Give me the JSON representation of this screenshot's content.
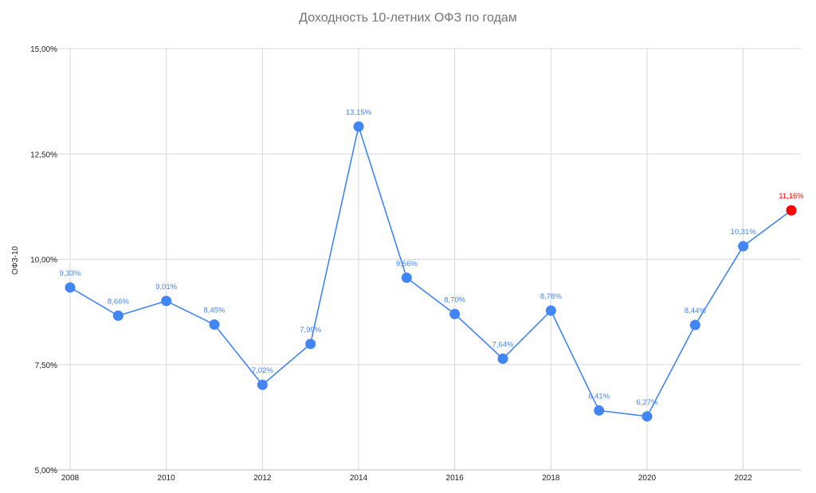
{
  "chart_data": {
    "type": "line",
    "title": "Доходность 10-летних ОФЗ по годам",
    "xlabel": "",
    "ylabel": "ОФЗ-10",
    "x": [
      2008,
      2009,
      2010,
      2011,
      2012,
      2013,
      2014,
      2015,
      2016,
      2017,
      2018,
      2019,
      2020,
      2021,
      2022,
      2023
    ],
    "series": [
      {
        "values": [
          9.33,
          8.66,
          9.01,
          8.45,
          7.02,
          7.99,
          13.15,
          9.56,
          8.7,
          7.64,
          8.78,
          6.41,
          6.27,
          8.44,
          10.31,
          11.16
        ],
        "labels": [
          "9,33%",
          "8,66%",
          "9,01%",
          "8,45%",
          "7,02%",
          "7,99%",
          "13,15%",
          "9,56%",
          "8,70%",
          "7,64%",
          "8,78%",
          "6,41%",
          "6,27%",
          "8,44%",
          "10,31%",
          "11,16%"
        ],
        "color": "#4285f4",
        "highlight_last_color": "#ff0000"
      }
    ],
    "xticks": [
      "2008",
      "2010",
      "2012",
      "2014",
      "2016",
      "2018",
      "2020",
      "2022"
    ],
    "xtick_values": [
      2008,
      2010,
      2012,
      2014,
      2016,
      2018,
      2020,
      2022
    ],
    "yticks": [
      "5,00%",
      "7,50%",
      "10,00%",
      "12,50%",
      "15,00%"
    ],
    "ytick_values": [
      5,
      7.5,
      10,
      12.5,
      15
    ],
    "ylim": [
      5,
      15
    ],
    "xlim": [
      2008,
      2023
    ],
    "grid": true,
    "legend": "none"
  }
}
